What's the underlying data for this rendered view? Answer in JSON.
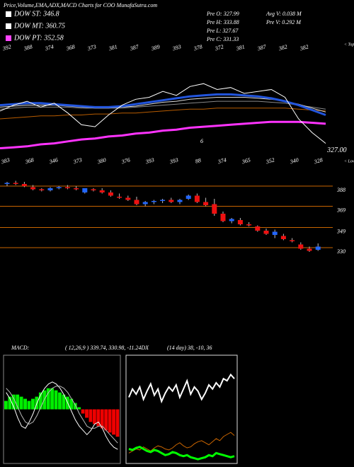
{
  "header": {
    "title": "Price,Volume,EMA,ADX,MACD Charts for COO MunafaSutra.com",
    "dow": [
      {
        "label": "DOW ST: 346.8",
        "color": "#ffffff"
      },
      {
        "label": "DOW MT: 360.75",
        "color": "#ffffff"
      },
      {
        "label": "DOW PT: 352.58",
        "color": "#ff44ff"
      }
    ],
    "stats_left": [
      "Pre  O: 327.99",
      "Pre  H: 333.88",
      "Pre  L: 327.67",
      "Pre  C: 331.33"
    ],
    "stats_right": [
      "Avg V: 0.038  M",
      "Pre  V: 0.292  M"
    ]
  },
  "chart_data": [
    {
      "type": "line",
      "categories": [
        null,
        null,
        null,
        null,
        null,
        null,
        null,
        null,
        null,
        null,
        null,
        null,
        null,
        null,
        null,
        null,
        null,
        null,
        null,
        null,
        null,
        null,
        null,
        null,
        null
      ],
      "ylim": [
        300,
        430
      ],
      "series": [
        {
          "color": "#ff33ff",
          "width": 3,
          "values": [
            322,
            323,
            324,
            326,
            327,
            329,
            331,
            332,
            334,
            335,
            337,
            338,
            340,
            341,
            343,
            344,
            345,
            346,
            347,
            348,
            349,
            349,
            349,
            348,
            347
          ]
        },
        {
          "color": "#b85c00",
          "width": 1,
          "values": [
            352,
            353,
            354,
            355,
            355,
            356,
            356,
            357,
            357,
            358,
            358,
            359,
            360,
            361,
            362,
            362,
            363,
            363,
            363,
            363,
            363,
            363,
            362,
            361,
            360
          ]
        },
        {
          "color": "#888888",
          "width": 1,
          "values": [
            362,
            363,
            364,
            364,
            364,
            364,
            363,
            363,
            363,
            363,
            364,
            365,
            366,
            367,
            368,
            369,
            370,
            370,
            370,
            370,
            369,
            368,
            366,
            364,
            362
          ]
        },
        {
          "color": "#dddddd",
          "width": 1,
          "values": [
            364,
            365,
            366,
            366,
            366,
            365,
            364,
            363,
            363,
            364,
            365,
            367,
            369,
            370,
            372,
            373,
            374,
            374,
            374,
            373,
            372,
            370,
            367,
            363,
            359
          ]
        },
        {
          "color": "#2255dd",
          "width": 3,
          "values": [
            366,
            367,
            368,
            368,
            367,
            366,
            365,
            364,
            364,
            365,
            367,
            369,
            371,
            373,
            375,
            376,
            377,
            377,
            376,
            375,
            373,
            370,
            366,
            361,
            356
          ]
        },
        {
          "color": "#ffffff",
          "width": 1,
          "values": [
            360,
            366,
            370,
            364,
            368,
            358,
            346,
            344,
            356,
            366,
            372,
            374,
            380,
            376,
            385,
            388,
            382,
            384,
            378,
            380,
            382,
            374,
            352,
            338,
            327
          ]
        }
      ],
      "tops": [
        392,
        388,
        374,
        368,
        373,
        381,
        387,
        389,
        393,
        378,
        372,
        381,
        387,
        382,
        382
      ],
      "lows": [
        383,
        368,
        346,
        373,
        380,
        376,
        393,
        393,
        88,
        374,
        365,
        352,
        340,
        328
      ],
      "tops_label": "< Tops",
      "lows_label": "< Lows",
      "last_price": {
        "value": 327,
        "label": "327.00"
      },
      "marker_text": "6"
    },
    {
      "type": "candlestick",
      "ylim": [
        237,
        400
      ],
      "yticks": [
        388,
        369,
        349,
        330
      ],
      "up_color": "#2266ff",
      "down_color": "#ee1111",
      "level_color": "#c86400",
      "open": [
        390,
        391,
        390,
        387,
        385,
        384,
        386,
        387,
        386,
        382,
        385,
        384,
        382,
        378,
        377,
        375,
        371,
        373,
        374,
        375,
        373,
        376,
        379,
        373,
        371,
        362,
        355,
        356,
        352,
        350,
        346,
        342,
        341,
        337,
        333,
        329,
        328
      ],
      "high": [
        392,
        393,
        392,
        389,
        386,
        387,
        388,
        389,
        388,
        386,
        386,
        386,
        384,
        381,
        379,
        378,
        374,
        375,
        376,
        377,
        376,
        380,
        381,
        377,
        376,
        364,
        358,
        358,
        354,
        351,
        348,
        347,
        343,
        339,
        335,
        331,
        334
      ],
      "low": [
        388,
        389,
        387,
        384,
        383,
        383,
        385,
        385,
        384,
        381,
        383,
        381,
        378,
        376,
        374,
        370,
        369,
        371,
        372,
        372,
        371,
        375,
        372,
        369,
        360,
        354,
        353,
        351,
        350,
        345,
        342,
        339,
        337,
        335,
        328,
        326,
        327
      ],
      "close": [
        391,
        390,
        388,
        385,
        384,
        386,
        387,
        386,
        385,
        386,
        384,
        382,
        379,
        377,
        375,
        371,
        373,
        374,
        375,
        373,
        375,
        379,
        373,
        370,
        362,
        355,
        357,
        352,
        351,
        346,
        343,
        345,
        338,
        336,
        329,
        327,
        331
      ]
    },
    {
      "type": "macd",
      "title": "MACD:",
      "subtitle": "( 12,26,9 ) 339.74,  330.98,  -11.24DX",
      "ylim": [
        -25,
        25
      ],
      "pos_color": "#00ee00",
      "neg_color": "#ee0000",
      "histogram": [
        4,
        6,
        7,
        7,
        6,
        5,
        4,
        5,
        6,
        8,
        9,
        10,
        10,
        9,
        8,
        7,
        6,
        5,
        3,
        1,
        -2,
        -4,
        -6,
        -7,
        -8,
        -9,
        -10,
        -11,
        -12,
        -13
      ],
      "series": [
        {
          "color": "#ffffff",
          "values": [
            8,
            5,
            1,
            -4,
            -8,
            -9,
            -6,
            -2,
            3,
            7,
            10,
            12,
            13,
            12,
            10,
            7,
            3,
            -1,
            -5,
            -8,
            -10,
            -12,
            -10,
            -7,
            -6,
            -9,
            -13,
            -16,
            -18,
            -19
          ]
        },
        {
          "color": "#bbbbbb",
          "values": [
            10,
            8,
            5,
            1,
            -3,
            -6,
            -7,
            -6,
            -3,
            1,
            5,
            8,
            10,
            11,
            11,
            10,
            8,
            5,
            2,
            -2,
            -5,
            -8,
            -9,
            -9,
            -8,
            -8,
            -10,
            -12,
            -14,
            -16
          ]
        }
      ]
    },
    {
      "type": "adx",
      "subtitle": "(14 day) 38, -10, 36",
      "ylim": [
        0,
        100
      ],
      "series": [
        {
          "color": "#ffffff",
          "width": 2,
          "values": [
            62,
            70,
            65,
            72,
            60,
            68,
            75,
            64,
            70,
            58,
            66,
            72,
            68,
            74,
            62,
            70,
            78,
            65,
            72,
            68,
            60,
            66,
            74,
            70,
            76,
            72,
            80,
            78,
            84,
            80
          ]
        },
        {
          "color": "#cc6600",
          "width": 1,
          "values": [
            8,
            10,
            12,
            11,
            14,
            12,
            10,
            13,
            15,
            14,
            12,
            11,
            13,
            16,
            18,
            15,
            13,
            14,
            17,
            19,
            20,
            18,
            16,
            19,
            22,
            20,
            24,
            26,
            28,
            25
          ]
        },
        {
          "color": "#00ff00",
          "width": 3,
          "values": [
            12,
            11,
            13,
            14,
            12,
            10,
            9,
            11,
            10,
            8,
            6,
            7,
            9,
            8,
            6,
            5,
            6,
            4,
            3,
            2,
            3,
            4,
            6,
            5,
            8,
            7,
            6,
            5,
            4,
            5
          ]
        }
      ]
    }
  ]
}
